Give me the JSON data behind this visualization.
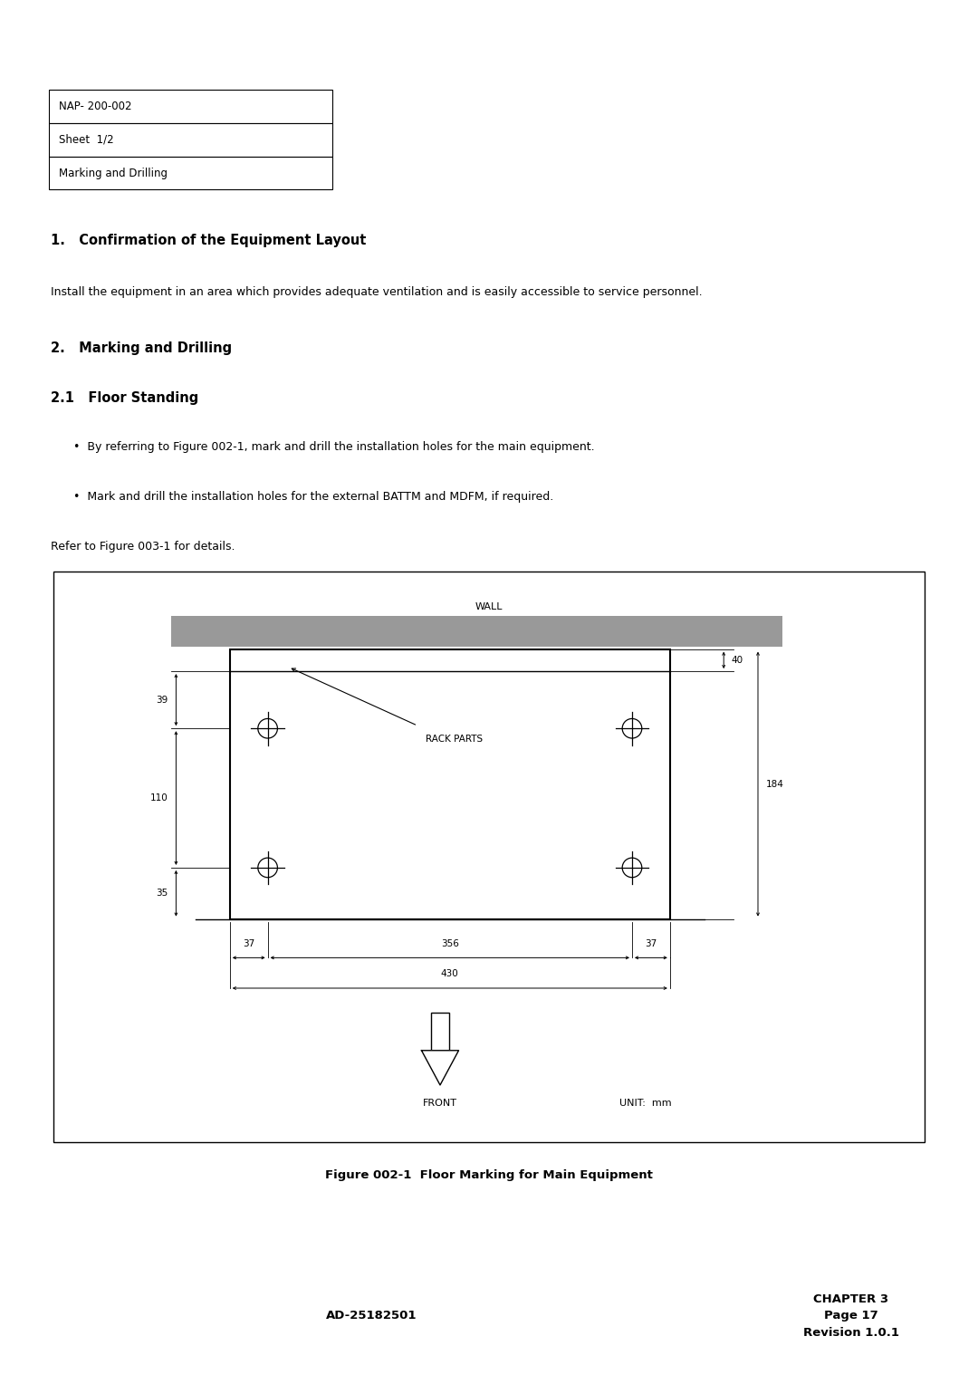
{
  "bg_color": "#ffffff",
  "page_width": 10.8,
  "page_height": 15.28,
  "header_rows": [
    "NAP- 200-002",
    "Sheet  1/2",
    "Marking and Drilling"
  ],
  "section1_title": "1.   Confirmation of the Equipment Layout",
  "section1_body": "Install the equipment in an area which provides adequate ventilation and is easily accessible to service personnel.",
  "section2_title": "2.   Marking and Drilling",
  "section21_title": "2.1   Floor Standing",
  "bullet1": "By referring to Figure 002-1, mark and drill the installation holes for the main equipment.",
  "bullet2": "Mark and drill the installation holes for the external BATTM and MDFM, if required.",
  "refer_text": "Refer to Figure 003-1 for details.",
  "figure_caption": "Figure 002-1  Floor Marking for Main Equipment",
  "footer_left": "AD-25182501",
  "footer_right_line1": "CHAPTER 3",
  "footer_right_line2": "Page 17",
  "footer_right_line3": "Revision 1.0.1",
  "wall_label": "WALL",
  "rack_label": "RACK PARTS",
  "front_label": "FRONT",
  "unit_label": "UNIT:  mm",
  "dim_40": "40",
  "dim_184": "184",
  "dim_39": "39",
  "dim_110": "110",
  "dim_35": "35",
  "dim_37a": "37",
  "dim_356": "356",
  "dim_37b": "37",
  "dim_430": "430"
}
